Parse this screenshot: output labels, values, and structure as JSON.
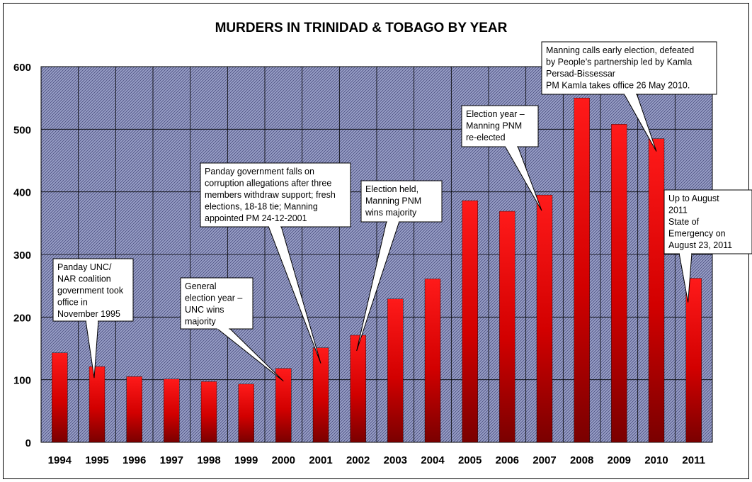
{
  "chart_data": {
    "type": "bar",
    "title": "MURDERS IN TRINIDAD & TOBAGO BY YEAR",
    "xlabel": "",
    "ylabel": "",
    "categories": [
      "1994",
      "1995",
      "1996",
      "1997",
      "1998",
      "1999",
      "2000",
      "2001",
      "2002",
      "2003",
      "2004",
      "2005",
      "2006",
      "2007",
      "2008",
      "2009",
      "2010",
      "2011"
    ],
    "values": [
      143,
      121,
      105,
      101,
      97,
      93,
      118,
      151,
      171,
      229,
      261,
      386,
      369,
      395,
      550,
      508,
      485,
      262
    ],
    "ylim": [
      0,
      600
    ],
    "yticks": [
      0,
      100,
      200,
      300,
      400,
      500,
      600
    ],
    "grid": true,
    "colors": {
      "bar_top": "#ff1a1a",
      "bar_bottom": "#7a0000",
      "plot_bg": "#9aa0c8",
      "hatch": "#4b5080"
    },
    "annotations": [
      {
        "category": "1995",
        "lines": [
          "Panday UNC/",
          "NAR coalition",
          "government took",
          "office in",
          "November 1995"
        ]
      },
      {
        "category": "2000",
        "lines": [
          "General",
          "election year –",
          "UNC wins",
          "majority"
        ]
      },
      {
        "category": "2001",
        "lines": [
          "Panday government falls on",
          "corruption allegations after three",
          "members withdraw support; fresh",
          "elections, 18-18 tie; Manning",
          "appointed PM 24-12-2001"
        ]
      },
      {
        "category": "2002",
        "lines": [
          "Election held,",
          "Manning PNM",
          "wins majority"
        ]
      },
      {
        "category": "2007",
        "lines": [
          "Election year –",
          "Manning PNM",
          "re-elected"
        ]
      },
      {
        "category": "2010",
        "lines": [
          "Manning calls early election, defeated",
          "by People’s partnership led by Kamla",
          "Persad-Bissessar",
          "PM Kamla takes office 26 May 2010."
        ]
      },
      {
        "category": "2011",
        "lines": [
          "Up to August",
          "2011",
          "State of",
          "Emergency on",
          "August 23, 2011"
        ]
      }
    ]
  }
}
